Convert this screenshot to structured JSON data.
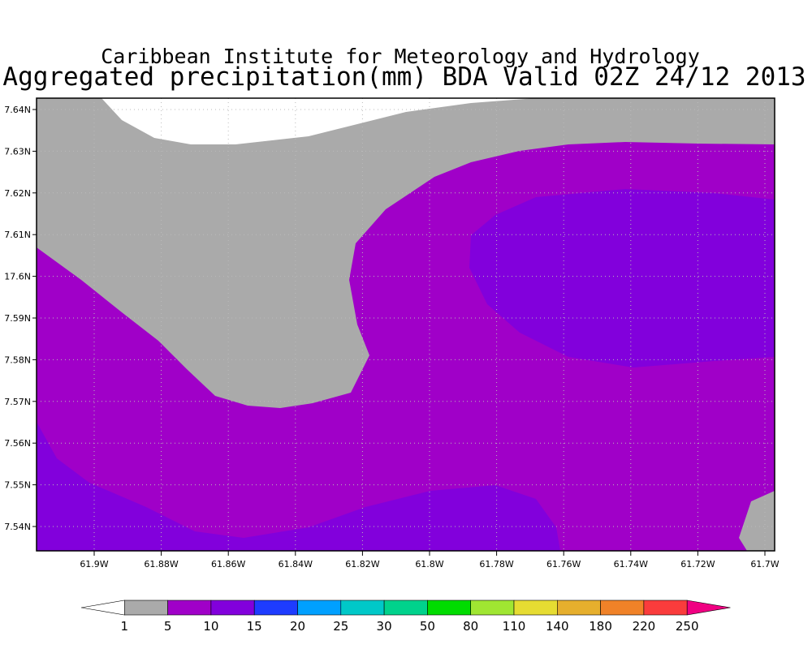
{
  "header": {
    "title": "Caribbean Institute for Meteorology and Hydrology",
    "subtitle": "Aggregated precipitation(mm) BDA Valid 02Z 24/12 2013"
  },
  "axes": {
    "x_labels": [
      "61.9W",
      "61.88W",
      "61.86W",
      "61.84W",
      "61.82W",
      "61.8W",
      "61.78W",
      "61.76W",
      "61.74W",
      "61.72W",
      "61.7W"
    ],
    "y_labels": [
      "7.64N",
      "7.63N",
      "7.62N",
      "7.61N",
      "17.6N",
      "7.59N",
      "7.58N",
      "7.57N",
      "7.56N",
      "7.55N",
      "7.54N"
    ]
  },
  "colorbar": {
    "labels": [
      "1",
      "5",
      "10",
      "15",
      "20",
      "25",
      "30",
      "50",
      "80",
      "110",
      "140",
      "180",
      "220",
      "250"
    ],
    "colors": [
      "#ffffff",
      "#aaaaaa",
      "#a000c8",
      "#8200dc",
      "#1e3cff",
      "#00a0ff",
      "#00c8c8",
      "#00d28c",
      "#00dc00",
      "#a0e632",
      "#e6dc32",
      "#e6af2d",
      "#f08228",
      "#fa3c3c",
      "#f00082"
    ]
  }
}
